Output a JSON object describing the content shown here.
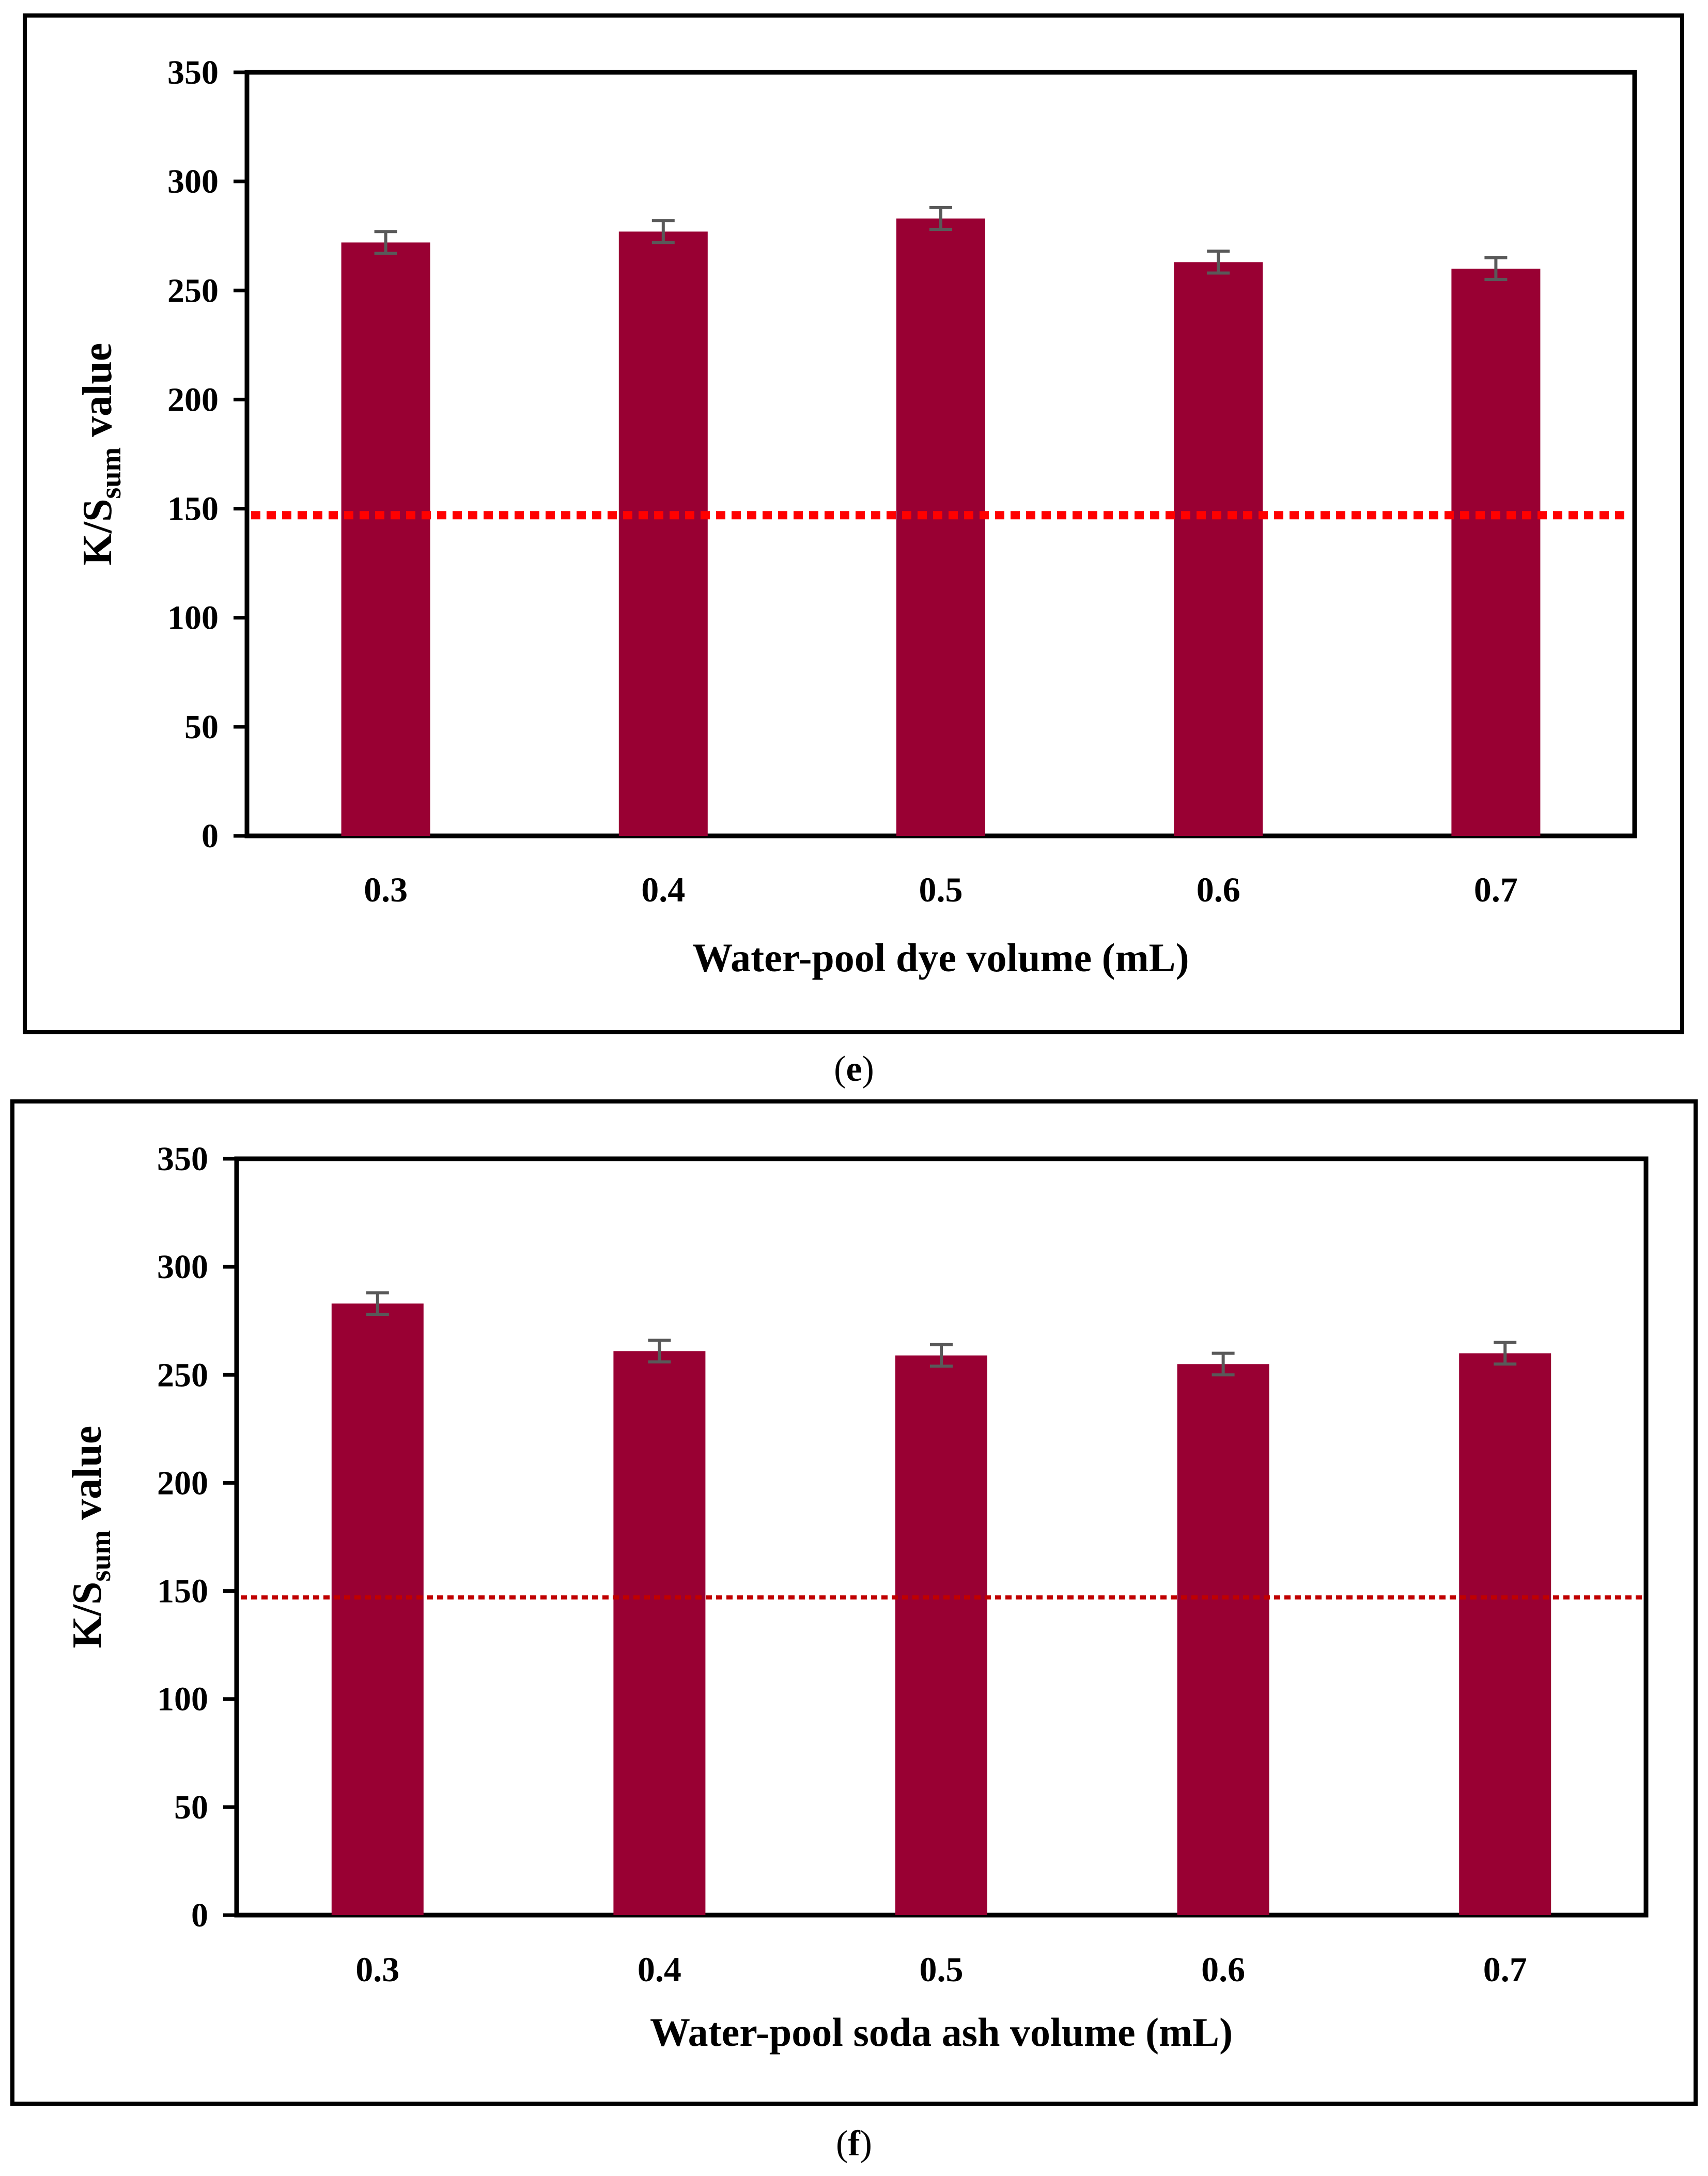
{
  "figures": [
    {
      "caption_letter": "e"
    },
    {
      "caption_letter": "f"
    }
  ],
  "chart_data": [
    {
      "type": "bar",
      "panel": "e",
      "categories": [
        "0.3",
        "0.4",
        "0.5",
        "0.6",
        "0.7"
      ],
      "values": [
        272,
        277,
        283,
        263,
        260
      ],
      "error": [
        5,
        5,
        5,
        5,
        5
      ],
      "reference_line": 147,
      "ylim": [
        0,
        350
      ],
      "yticks": [
        0,
        50,
        100,
        150,
        200,
        250,
        300,
        350
      ],
      "ylabel_main": "K/S",
      "ylabel_sub": "sum",
      "ylabel_tail": " value",
      "xlabel": "Water-pool dye volume (mL)",
      "colors": {
        "bar": "#990033",
        "error": "#595959",
        "reference": "#ff0000",
        "axis": "#000000"
      }
    },
    {
      "type": "bar",
      "panel": "f",
      "categories": [
        "0.3",
        "0.4",
        "0.5",
        "0.6",
        "0.7"
      ],
      "values": [
        283,
        261,
        259,
        255,
        260
      ],
      "error": [
        5,
        5,
        5,
        5,
        5
      ],
      "reference_line": 147,
      "ylim": [
        0,
        350
      ],
      "yticks": [
        0,
        50,
        100,
        150,
        200,
        250,
        300,
        350
      ],
      "ylabel_main": "K/S",
      "ylabel_sub": "sum",
      "ylabel_tail": " value",
      "xlabel": "Water-pool soda ash volume (mL)",
      "colors": {
        "bar": "#990033",
        "error": "#595959",
        "reference": "#c00000",
        "axis": "#000000"
      }
    }
  ]
}
